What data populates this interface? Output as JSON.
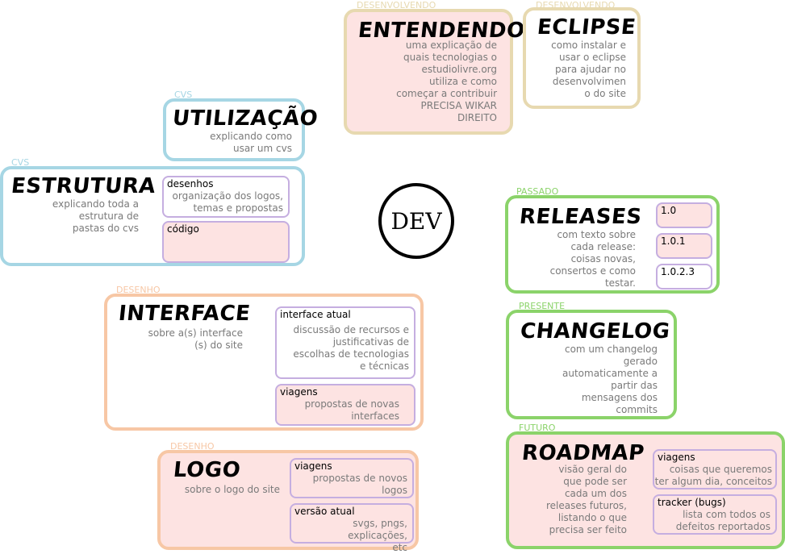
{
  "center": "DEV",
  "nodes": {
    "entendendo": {
      "category": "DESENVOLVENDO",
      "title": "ENTENDENDO",
      "desc": [
        "uma explicação de",
        "quais tecnologias o",
        "estudiolivre.org",
        "utiliza e como",
        "começar a contribuir",
        "PRECISA WIKAR",
        "DIREITO"
      ]
    },
    "eclipse": {
      "category": "DESENVOLVENDO",
      "title": "ECLIPSE",
      "desc": [
        "como instalar e",
        "usar o eclipse",
        "para ajudar no",
        "desenvolvimen",
        "o do site"
      ]
    },
    "utilizacao": {
      "category": "CVS",
      "title": "UTILIZAÇÃO",
      "desc": [
        "explicando como",
        "usar um cvs"
      ]
    },
    "estrutura": {
      "category": "CVS",
      "title": "ESTRUTURA",
      "desc": [
        "explicando toda a",
        "estrutura de",
        "pastas do cvs"
      ],
      "subs": [
        {
          "label": "desenhos",
          "text": [
            "organização dos logos,",
            "temas e propostas"
          ]
        },
        {
          "label": "código",
          "text": []
        }
      ]
    },
    "interface": {
      "category": "DESENHO",
      "title": "INTERFACE",
      "desc": [
        "sobre a(s) interface",
        "(s) do site"
      ],
      "subs": [
        {
          "label": "interface atual",
          "text": [
            "discussão de recursos e",
            "justificativas de",
            "escolhas de tecnologias",
            "e técnicas"
          ]
        },
        {
          "label": "viagens",
          "text": [
            "propostas de novas",
            "interfaces"
          ]
        }
      ]
    },
    "logo": {
      "category": "DESENHO",
      "title": "LOGO",
      "desc": [
        "sobre o logo do site"
      ],
      "subs": [
        {
          "label": "viagens",
          "text": [
            "propostas de novos",
            "logos"
          ]
        },
        {
          "label": "versão atual",
          "text": [
            "svgs, pngs, explicações,",
            "etc"
          ]
        }
      ]
    },
    "releases": {
      "category": "PASSADO",
      "title": "RELEASES",
      "desc": [
        "com texto sobre",
        "cada release:",
        "coisas novas,",
        "consertos e como",
        "testar."
      ],
      "subs": [
        {
          "label": "1.0",
          "text": []
        },
        {
          "label": "1.0.1",
          "text": []
        },
        {
          "label": "1.0.2.3",
          "text": []
        }
      ]
    },
    "changelog": {
      "category": "PRESENTE",
      "title": "CHANGELOG",
      "desc": [
        "com um changelog",
        "gerado",
        "automaticamente a",
        "partir das",
        "mensagens dos",
        "commits"
      ]
    },
    "roadmap": {
      "category": "FUTURO",
      "title": "ROADMAP",
      "desc": [
        "visão geral do",
        "que pode ser",
        "cada um dos",
        "releases futuros,",
        "listando o que",
        "precisa ser feito"
      ],
      "subs": [
        {
          "label": "viagens",
          "text": [
            "coisas que queremos",
            "ter algum dia, conceitos"
          ]
        },
        {
          "label": "tracker (bugs)",
          "text": [
            "lista com todos os",
            "defeitos reportados"
          ]
        }
      ]
    }
  },
  "colors": {
    "cvs": "#a6d6e4",
    "desenvolvendo": "#e7d9b0",
    "desenho": "#f7c7a5",
    "tempo": "#8bd36a",
    "sub_border": "#c5aee0",
    "fill": "#fde3e2"
  }
}
